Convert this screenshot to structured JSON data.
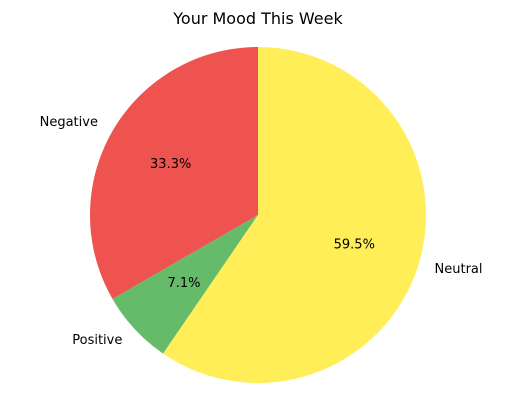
{
  "chart_data": {
    "type": "pie",
    "title": "Your Mood This Week",
    "start_angle_deg": 90,
    "direction": "counterclockwise",
    "slices": [
      {
        "label": "Negative",
        "value": 33.3,
        "pct_label": "33.3%",
        "color": "#ef5350"
      },
      {
        "label": "Positive",
        "value": 7.1,
        "pct_label": "7.1%",
        "color": "#66bb6a"
      },
      {
        "label": "Neutral",
        "value": 59.5,
        "pct_label": "59.5%",
        "color": "#ffee58"
      }
    ]
  }
}
